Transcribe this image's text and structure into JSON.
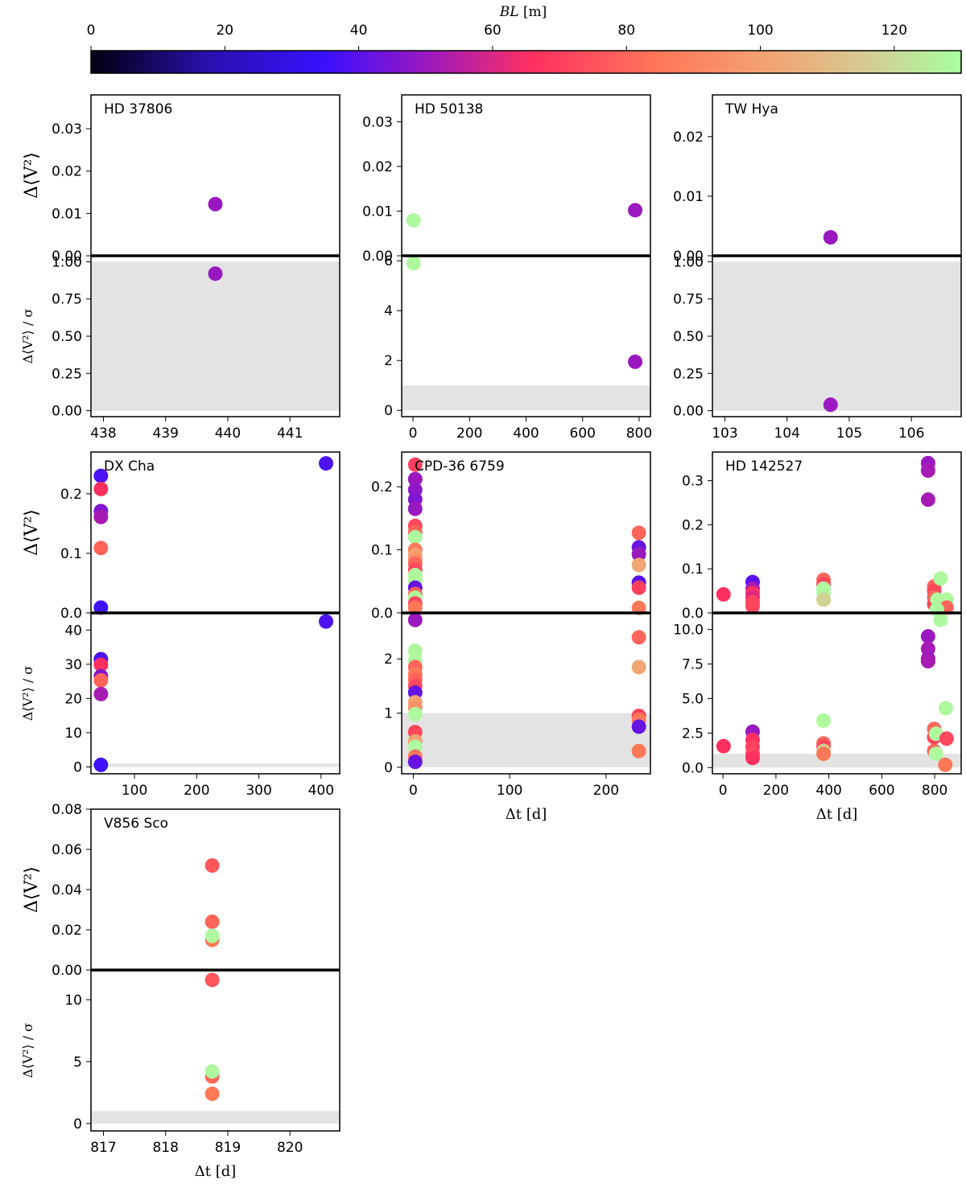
{
  "colorbar": {
    "label": "BL [m]",
    "label_var": "BL",
    "label_unit": "[m]",
    "min": 0,
    "max": 130,
    "ticks": [
      0,
      20,
      40,
      60,
      80,
      100,
      120
    ],
    "stops": [
      {
        "v": 0,
        "color": "#000010"
      },
      {
        "v": 18,
        "color": "#2a10b0"
      },
      {
        "v": 35,
        "color": "#3a10ff"
      },
      {
        "v": 50,
        "color": "#9a18c0"
      },
      {
        "v": 66,
        "color": "#ff3060"
      },
      {
        "v": 85,
        "color": "#ff7858"
      },
      {
        "v": 100,
        "color": "#f4a070"
      },
      {
        "v": 115,
        "color": "#d8c890"
      },
      {
        "v": 130,
        "color": "#a8ffa0"
      }
    ]
  },
  "chart_data": [
    {
      "type": "scatter",
      "title": "HD 37806",
      "ylabel_top": "Δ⟨V²⟩",
      "ylabel_bottom": "Δ⟨V²⟩ / σ",
      "xlabel": "",
      "xlim": [
        437.8,
        441.8
      ],
      "xticks": [
        438,
        439,
        440,
        441
      ],
      "top": {
        "ylim": [
          0,
          0.038
        ],
        "yticks": [
          0.0,
          0.01,
          0.02,
          0.03
        ],
        "decimals": 2,
        "points": [
          {
            "x": 439.8,
            "y": 0.0122,
            "bl": 50
          }
        ]
      },
      "bottom": {
        "ylim": [
          -0.04,
          1.04
        ],
        "yticks": [
          0.0,
          0.25,
          0.5,
          0.75,
          1.0
        ],
        "decimals": 2,
        "shade_to": 1.0,
        "points": [
          {
            "x": 439.8,
            "y": 0.92,
            "bl": 50
          }
        ]
      }
    },
    {
      "type": "scatter",
      "title": "HD 50138",
      "ylabel_top": "",
      "ylabel_bottom": "",
      "xlabel": "",
      "xlim": [
        -40,
        840
      ],
      "xticks": [
        0,
        200,
        400,
        600,
        800
      ],
      "top": {
        "ylim": [
          0,
          0.036
        ],
        "yticks": [
          0.0,
          0.01,
          0.02,
          0.03
        ],
        "decimals": 2,
        "points": [
          {
            "x": 2,
            "y": 0.0079,
            "bl": 128
          },
          {
            "x": 786,
            "y": 0.0102,
            "bl": 50
          }
        ]
      },
      "bottom": {
        "ylim": [
          -0.25,
          6.2
        ],
        "yticks": [
          0,
          2,
          4,
          6
        ],
        "decimals": 0,
        "shade_to": 1.0,
        "points": [
          {
            "x": 2,
            "y": 5.9,
            "bl": 128
          },
          {
            "x": 786,
            "y": 1.95,
            "bl": 50
          }
        ]
      }
    },
    {
      "type": "scatter",
      "title": "TW Hya",
      "ylabel_top": "",
      "ylabel_bottom": "",
      "xlabel": "",
      "xlim": [
        102.8,
        106.8
      ],
      "xticks": [
        103,
        104,
        105,
        106
      ],
      "top": {
        "ylim": [
          0,
          0.027
        ],
        "yticks": [
          0.0,
          0.01,
          0.02
        ],
        "decimals": 2,
        "points": [
          {
            "x": 104.7,
            "y": 0.0031,
            "bl": 50
          }
        ]
      },
      "bottom": {
        "ylim": [
          -0.04,
          1.04
        ],
        "yticks": [
          0.0,
          0.25,
          0.5,
          0.75,
          1.0
        ],
        "decimals": 2,
        "shade_to": 1.0,
        "points": [
          {
            "x": 104.7,
            "y": 0.04,
            "bl": 50
          }
        ]
      }
    },
    {
      "type": "scatter",
      "title": "DX Cha",
      "ylabel_top": "Δ⟨V²⟩",
      "ylabel_bottom": "Δ⟨V²⟩ / σ",
      "xlabel": "",
      "xlim": [
        30,
        430
      ],
      "xticks": [
        100,
        200,
        300,
        400
      ],
      "top": {
        "ylim": [
          0,
          0.27
        ],
        "yticks": [
          0.0,
          0.1,
          0.2
        ],
        "decimals": 1,
        "points": [
          {
            "x": 46,
            "y": 0.23,
            "bl": 38
          },
          {
            "x": 46,
            "y": 0.208,
            "bl": 66
          },
          {
            "x": 46,
            "y": 0.171,
            "bl": 46
          },
          {
            "x": 46,
            "y": 0.161,
            "bl": 52
          },
          {
            "x": 46,
            "y": 0.109,
            "bl": 80
          },
          {
            "x": 46,
            "y": 0.009,
            "bl": 36
          },
          {
            "x": 408,
            "y": 0.251,
            "bl": 38
          }
        ]
      },
      "bottom": {
        "ylim": [
          -2,
          45
        ],
        "yticks": [
          0,
          10,
          20,
          30,
          40
        ],
        "decimals": 0,
        "shade_to": 1.0,
        "points": [
          {
            "x": 46,
            "y": 31.5,
            "bl": 38
          },
          {
            "x": 46,
            "y": 29.8,
            "bl": 66
          },
          {
            "x": 46,
            "y": 26.5,
            "bl": 46
          },
          {
            "x": 46,
            "y": 25.3,
            "bl": 80
          },
          {
            "x": 46,
            "y": 21.3,
            "bl": 52
          },
          {
            "x": 46,
            "y": 0.6,
            "bl": 36
          },
          {
            "x": 408,
            "y": 42.5,
            "bl": 38
          }
        ]
      }
    },
    {
      "type": "scatter",
      "title": "CPD-36 6759",
      "ylabel_top": "",
      "ylabel_bottom": "",
      "xlabel": "Δt [d]",
      "xlim": [
        -12,
        246
      ],
      "xticks": [
        0,
        100,
        200
      ],
      "top": {
        "ylim": [
          0,
          0.255
        ],
        "yticks": [
          0.0,
          0.1,
          0.2
        ],
        "decimals": 1,
        "points": [
          {
            "x": 2,
            "y": 0.235,
            "bl": 70
          },
          {
            "x": 2,
            "y": 0.212,
            "bl": 50
          },
          {
            "x": 2,
            "y": 0.195,
            "bl": 48
          },
          {
            "x": 2,
            "y": 0.18,
            "bl": 46
          },
          {
            "x": 2,
            "y": 0.165,
            "bl": 50
          },
          {
            "x": 2,
            "y": 0.138,
            "bl": 72
          },
          {
            "x": 2,
            "y": 0.128,
            "bl": 80
          },
          {
            "x": 2,
            "y": 0.12,
            "bl": 128
          },
          {
            "x": 2,
            "y": 0.1,
            "bl": 85
          },
          {
            "x": 2,
            "y": 0.092,
            "bl": 100
          },
          {
            "x": 2,
            "y": 0.085,
            "bl": 95
          },
          {
            "x": 2,
            "y": 0.078,
            "bl": 80
          },
          {
            "x": 2,
            "y": 0.068,
            "bl": 72
          },
          {
            "x": 2,
            "y": 0.06,
            "bl": 128
          },
          {
            "x": 2,
            "y": 0.052,
            "bl": 128
          },
          {
            "x": 2,
            "y": 0.04,
            "bl": 42
          },
          {
            "x": 2,
            "y": 0.03,
            "bl": 80
          },
          {
            "x": 2,
            "y": 0.024,
            "bl": 128
          },
          {
            "x": 2,
            "y": 0.015,
            "bl": 72
          },
          {
            "x": 2,
            "y": 0.008,
            "bl": 85
          },
          {
            "x": 234,
            "y": 0.127,
            "bl": 80
          },
          {
            "x": 234,
            "y": 0.104,
            "bl": 42
          },
          {
            "x": 234,
            "y": 0.093,
            "bl": 50
          },
          {
            "x": 234,
            "y": 0.076,
            "bl": 102
          },
          {
            "x": 234,
            "y": 0.048,
            "bl": 40
          },
          {
            "x": 234,
            "y": 0.04,
            "bl": 70
          },
          {
            "x": 234,
            "y": 0.008,
            "bl": 85
          }
        ]
      },
      "bottom": {
        "ylim": [
          -0.12,
          2.85
        ],
        "yticks": [
          0,
          1,
          2
        ],
        "decimals": 0,
        "shade_to": 1.0,
        "points": [
          {
            "x": 2,
            "y": 2.72,
            "bl": 50
          },
          {
            "x": 2,
            "y": 2.15,
            "bl": 128
          },
          {
            "x": 2,
            "y": 1.97,
            "bl": 128
          },
          {
            "x": 2,
            "y": 1.85,
            "bl": 80
          },
          {
            "x": 2,
            "y": 1.72,
            "bl": 85
          },
          {
            "x": 2,
            "y": 1.62,
            "bl": 80
          },
          {
            "x": 2,
            "y": 1.5,
            "bl": 72
          },
          {
            "x": 2,
            "y": 1.38,
            "bl": 42
          },
          {
            "x": 2,
            "y": 1.2,
            "bl": 100
          },
          {
            "x": 2,
            "y": 1.1,
            "bl": 95
          },
          {
            "x": 2,
            "y": 0.98,
            "bl": 128
          },
          {
            "x": 2,
            "y": 0.65,
            "bl": 72
          },
          {
            "x": 2,
            "y": 0.48,
            "bl": 100
          },
          {
            "x": 2,
            "y": 0.38,
            "bl": 128
          },
          {
            "x": 2,
            "y": 0.2,
            "bl": 85
          },
          {
            "x": 2,
            "y": 0.1,
            "bl": 42
          },
          {
            "x": 234,
            "y": 2.4,
            "bl": 80
          },
          {
            "x": 234,
            "y": 1.85,
            "bl": 102
          },
          {
            "x": 234,
            "y": 0.95,
            "bl": 70
          },
          {
            "x": 234,
            "y": 0.88,
            "bl": 85
          },
          {
            "x": 234,
            "y": 0.75,
            "bl": 42
          },
          {
            "x": 234,
            "y": 0.3,
            "bl": 85
          }
        ]
      }
    },
    {
      "type": "scatter",
      "title": "HD 142527",
      "ylabel_top": "",
      "ylabel_bottom": "",
      "xlabel": "Δt [d]",
      "xlim": [
        -40,
        900
      ],
      "xticks": [
        0,
        200,
        400,
        600,
        800
      ],
      "top": {
        "ylim": [
          0,
          0.365
        ],
        "yticks": [
          0.0,
          0.1,
          0.2,
          0.3
        ],
        "decimals": 1,
        "points": [
          {
            "x": 2,
            "y": 0.042,
            "bl": 66
          },
          {
            "x": 112,
            "y": 0.07,
            "bl": 40
          },
          {
            "x": 112,
            "y": 0.055,
            "bl": 52
          },
          {
            "x": 112,
            "y": 0.045,
            "bl": 66
          },
          {
            "x": 112,
            "y": 0.035,
            "bl": 60
          },
          {
            "x": 112,
            "y": 0.025,
            "bl": 70
          },
          {
            "x": 112,
            "y": 0.015,
            "bl": 72
          },
          {
            "x": 380,
            "y": 0.075,
            "bl": 80
          },
          {
            "x": 380,
            "y": 0.065,
            "bl": 72
          },
          {
            "x": 380,
            "y": 0.055,
            "bl": 128
          },
          {
            "x": 380,
            "y": 0.045,
            "bl": 128
          },
          {
            "x": 380,
            "y": 0.03,
            "bl": 118
          },
          {
            "x": 775,
            "y": 0.34,
            "bl": 50
          },
          {
            "x": 775,
            "y": 0.323,
            "bl": 52
          },
          {
            "x": 775,
            "y": 0.257,
            "bl": 52
          },
          {
            "x": 798,
            "y": 0.06,
            "bl": 80
          },
          {
            "x": 798,
            "y": 0.05,
            "bl": 72
          },
          {
            "x": 798,
            "y": 0.035,
            "bl": 80
          },
          {
            "x": 798,
            "y": 0.02,
            "bl": 72
          },
          {
            "x": 810,
            "y": 0.03,
            "bl": 128
          },
          {
            "x": 822,
            "y": 0.078,
            "bl": 128
          },
          {
            "x": 832,
            "y": 0.02,
            "bl": 128
          },
          {
            "x": 845,
            "y": 0.03,
            "bl": 128
          },
          {
            "x": 845,
            "y": 0.012,
            "bl": 80
          },
          {
            "x": 808,
            "y": 0.008,
            "bl": 128
          }
        ]
      },
      "bottom": {
        "ylim": [
          -0.45,
          11.2
        ],
        "yticks": [
          0.0,
          2.5,
          5.0,
          7.5,
          10.0
        ],
        "decimals": 1,
        "shade_to": 1.0,
        "points": [
          {
            "x": 2,
            "y": 1.55,
            "bl": 66
          },
          {
            "x": 112,
            "y": 2.6,
            "bl": 50
          },
          {
            "x": 112,
            "y": 2.0,
            "bl": 66
          },
          {
            "x": 112,
            "y": 1.5,
            "bl": 70
          },
          {
            "x": 112,
            "y": 1.0,
            "bl": 72
          },
          {
            "x": 112,
            "y": 0.7,
            "bl": 66
          },
          {
            "x": 380,
            "y": 3.4,
            "bl": 128
          },
          {
            "x": 380,
            "y": 1.75,
            "bl": 80
          },
          {
            "x": 380,
            "y": 1.5,
            "bl": 72
          },
          {
            "x": 380,
            "y": 1.2,
            "bl": 118
          },
          {
            "x": 380,
            "y": 1.0,
            "bl": 85
          },
          {
            "x": 775,
            "y": 9.5,
            "bl": 50
          },
          {
            "x": 775,
            "y": 8.6,
            "bl": 52
          },
          {
            "x": 775,
            "y": 7.9,
            "bl": 50
          },
          {
            "x": 775,
            "y": 7.7,
            "bl": 52
          },
          {
            "x": 798,
            "y": 2.8,
            "bl": 80
          },
          {
            "x": 798,
            "y": 2.2,
            "bl": 72
          },
          {
            "x": 798,
            "y": 1.2,
            "bl": 80
          },
          {
            "x": 805,
            "y": 2.45,
            "bl": 128
          },
          {
            "x": 805,
            "y": 1.0,
            "bl": 128
          },
          {
            "x": 822,
            "y": 10.7,
            "bl": 128
          },
          {
            "x": 842,
            "y": 4.3,
            "bl": 128
          },
          {
            "x": 845,
            "y": 2.1,
            "bl": 72
          },
          {
            "x": 840,
            "y": 0.2,
            "bl": 85
          }
        ]
      }
    },
    {
      "type": "scatter",
      "title": "V856 Sco",
      "ylabel_top": "Δ⟨V²⟩",
      "ylabel_bottom": "Δ⟨V²⟩ / σ",
      "xlabel": "Δt [d]",
      "xlim": [
        816.8,
        820.8
      ],
      "xticks": [
        817,
        818,
        819,
        820
      ],
      "top": {
        "ylim": [
          0,
          0.08
        ],
        "yticks": [
          0.0,
          0.02,
          0.04,
          0.06,
          0.08
        ],
        "decimals": 2,
        "points": [
          {
            "x": 818.75,
            "y": 0.052,
            "bl": 76
          },
          {
            "x": 818.75,
            "y": 0.024,
            "bl": 80
          },
          {
            "x": 818.75,
            "y": 0.015,
            "bl": 85
          },
          {
            "x": 818.75,
            "y": 0.017,
            "bl": 128
          }
        ]
      },
      "bottom": {
        "ylim": [
          -0.6,
          12.4
        ],
        "yticks": [
          0,
          5,
          10
        ],
        "decimals": 0,
        "shade_to": 1.0,
        "points": [
          {
            "x": 818.75,
            "y": 11.6,
            "bl": 76
          },
          {
            "x": 818.75,
            "y": 3.8,
            "bl": 80
          },
          {
            "x": 818.75,
            "y": 4.2,
            "bl": 128
          },
          {
            "x": 818.75,
            "y": 2.4,
            "bl": 85
          }
        ]
      }
    }
  ]
}
